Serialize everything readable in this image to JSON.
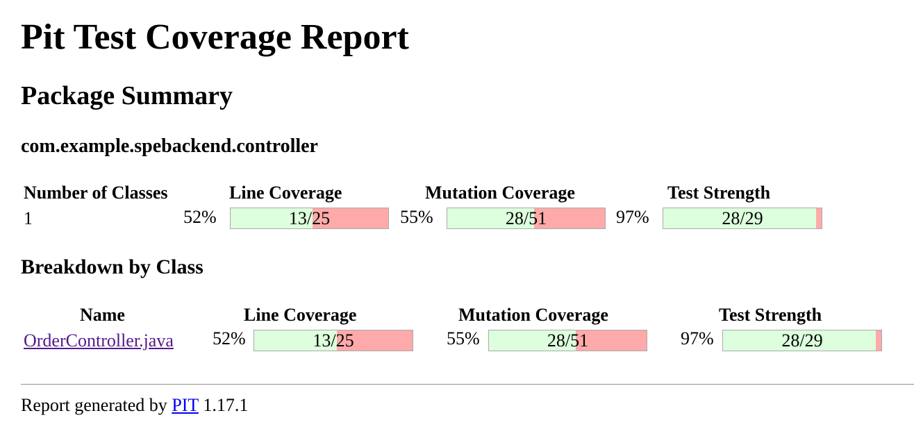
{
  "page": {
    "title": "Pit Test Coverage Report",
    "package_summary_heading": "Package Summary",
    "package_name": "com.example.spebackend.controller",
    "breakdown_heading": "Breakdown by Class"
  },
  "summary": {
    "headers": {
      "classes": "Number of Classes",
      "line": "Line Coverage",
      "mutation": "Mutation Coverage",
      "strength": "Test Strength"
    },
    "classes": "1",
    "line": {
      "percent": "52%",
      "ratio": "13/25",
      "covered": 13,
      "total": 25
    },
    "mutation": {
      "percent": "55%",
      "ratio": "28/51",
      "covered": 28,
      "total": 51
    },
    "strength": {
      "percent": "97%",
      "ratio": "28/29",
      "covered": 28,
      "total": 29
    }
  },
  "breakdown": {
    "headers": {
      "name": "Name",
      "line": "Line Coverage",
      "mutation": "Mutation Coverage",
      "strength": "Test Strength"
    },
    "rows": [
      {
        "name": "OrderController.java",
        "line": {
          "percent": "52%",
          "ratio": "13/25",
          "covered": 13,
          "total": 25
        },
        "mutation": {
          "percent": "55%",
          "ratio": "28/51",
          "covered": 28,
          "total": 51
        },
        "strength": {
          "percent": "97%",
          "ratio": "28/29",
          "covered": 28,
          "total": 29
        }
      }
    ]
  },
  "footer": {
    "prefix": "Report generated by",
    "link_text": "PIT",
    "version": "1.17.1"
  },
  "colors": {
    "covered": "#ddffdd",
    "uncovered": "#ffaaaa",
    "visited_link": "#551a8b",
    "link": "#0000ee"
  }
}
